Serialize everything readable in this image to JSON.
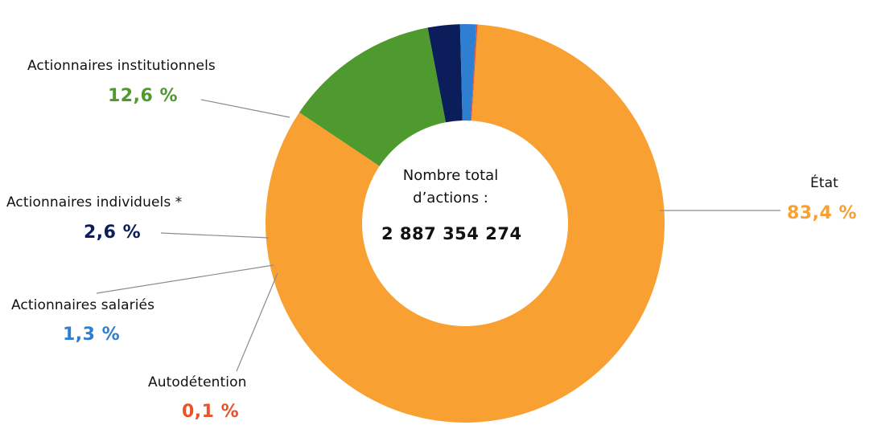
{
  "chart_data": {
    "type": "pie",
    "center": {
      "line1": "Nombre total",
      "line2": "d’actions :",
      "total": "2 887 354 274"
    },
    "slices": [
      {
        "label": "État",
        "value": 83.4,
        "value_text": "83,4 %",
        "color": "#F8A132"
      },
      {
        "label": "Actionnaires institutionnels",
        "value": 12.6,
        "value_text": "12,6 %",
        "color": "#4E9A2E"
      },
      {
        "label": "Actionnaires individuels *",
        "value": 2.6,
        "value_text": "2,6 %",
        "color": "#0B1E5B"
      },
      {
        "label": "Actionnaires salariés",
        "value": 1.3,
        "value_text": "1,3 %",
        "color": "#2E7ED2"
      },
      {
        "label": "Autodétention",
        "value": 0.1,
        "value_text": "0,1 %",
        "color": "#E8532B"
      }
    ]
  }
}
